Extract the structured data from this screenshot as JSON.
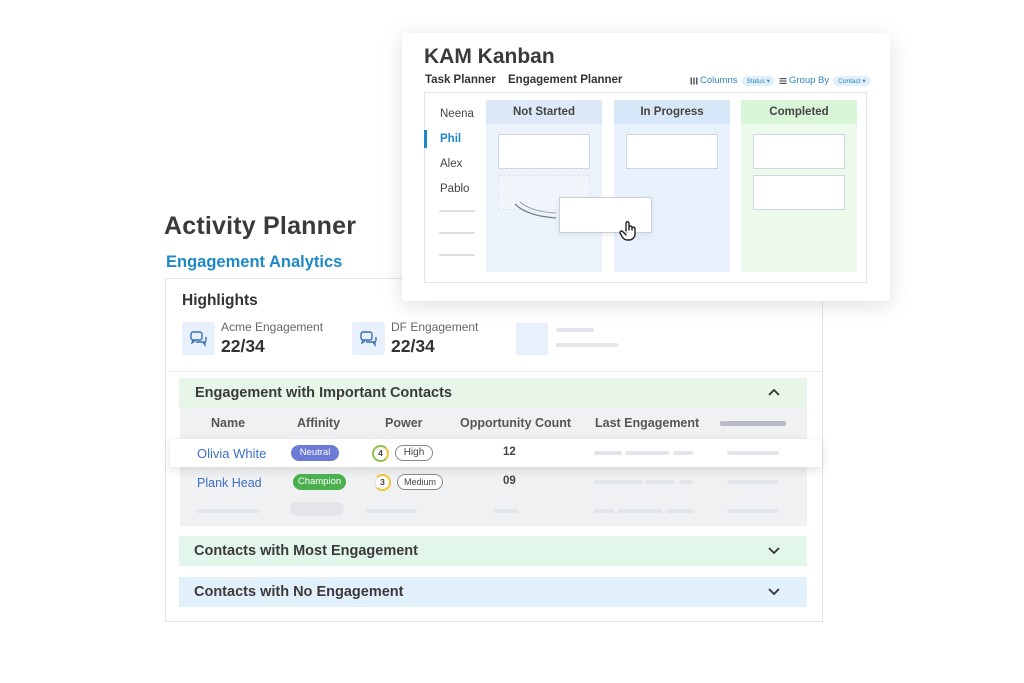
{
  "activity_planner": {
    "title": "Activity Planner",
    "subtitle": "Engagement Analytics",
    "highlights": {
      "title": "Highlights",
      "kpis": [
        {
          "label": "Acme Engagement",
          "value": "22/34",
          "icon": "chat-icon"
        },
        {
          "label": "DF Engagement",
          "value": "22/34",
          "icon": "chat-icon"
        }
      ]
    },
    "sections": [
      {
        "title": "Engagement with Important Contacts",
        "expanded": true,
        "color": "#e7f6e9"
      },
      {
        "title": "Contacts with Most Engagement",
        "expanded": false,
        "color": "#e3f6ec"
      },
      {
        "title": "Contacts with No Engagement",
        "expanded": false,
        "color": "#e1f0fb"
      }
    ],
    "table": {
      "columns": [
        "Name",
        "Affinity",
        "Power",
        "Opportunity Count",
        "Last Engagement"
      ],
      "rows": [
        {
          "name": "Olivia White",
          "affinity": "Neutral",
          "affinity_color": "#6b7bd6",
          "power_score": "4",
          "power": "High",
          "opportunity_count": "12"
        },
        {
          "name": "Plank Head",
          "affinity": "Champion",
          "affinity_color": "#4caf50",
          "power_score": "3",
          "power": "Medium",
          "opportunity_count": "09"
        }
      ]
    }
  },
  "kanban": {
    "title": "KAM Kanban",
    "tabs": [
      "Task Planner",
      "Engagement Planner"
    ],
    "toolbar": {
      "columns_label": "Columns",
      "columns_value": "Status",
      "group_by_label": "Group By",
      "group_by_value": "Contact"
    },
    "people": [
      "Neena",
      "Phil",
      "Alex",
      "Pablo"
    ],
    "active_person": "Phil",
    "columns": [
      {
        "title": "Not Started",
        "header_color": "#dde9f8",
        "body_color": "#ecf3fc"
      },
      {
        "title": "In Progress",
        "header_color": "#d7e7f8",
        "body_color": "#e8f1fc"
      },
      {
        "title": "Completed",
        "header_color": "#d9f5d7",
        "body_color": "#ebfaea"
      }
    ],
    "colors": {
      "accent": "#1e88c8"
    }
  }
}
